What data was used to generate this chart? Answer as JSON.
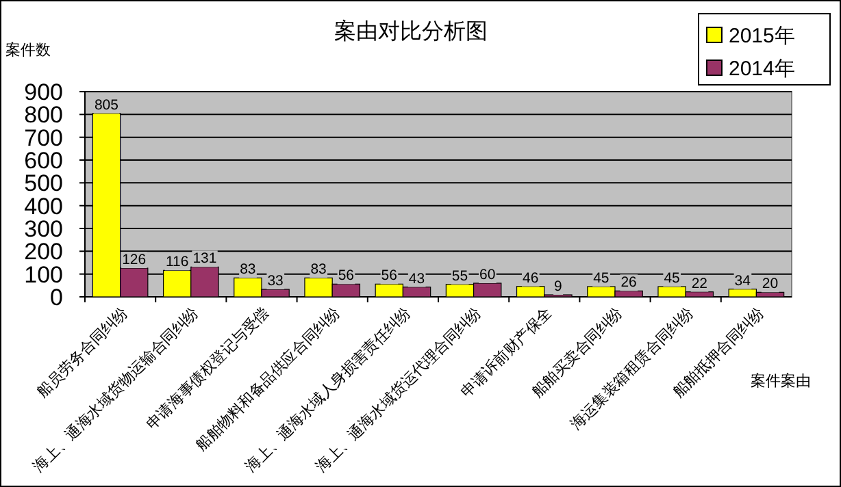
{
  "chart_data": {
    "type": "bar",
    "title": "案由对比分析图",
    "xlabel": "案件案由",
    "ylabel": "案件数",
    "categories": [
      "船员劳务合同纠纷",
      "海上、通海水域货物运输合同纠纷",
      "申请海事债权登记与受偿",
      "船舶物料和备品供应合同纠纷",
      "海上、通海水域人身损害责任纠纷",
      "海上、通海水域货运代理合同纠纷",
      "申请诉前财产保全",
      "船舶买卖合同纠纷",
      "海运集装箱租赁合同纠纷",
      "船舶抵押合同纠纷"
    ],
    "series": [
      {
        "name": "2015年",
        "color": "#ffff00",
        "values": [
          805,
          116,
          83,
          83,
          56,
          55,
          46,
          45,
          45,
          34
        ]
      },
      {
        "name": "2014年",
        "color": "#993366",
        "values": [
          126,
          131,
          33,
          56,
          43,
          60,
          9,
          26,
          22,
          20
        ]
      }
    ],
    "ylim": [
      0,
      900
    ],
    "yticks": [
      0,
      100,
      200,
      300,
      400,
      500,
      600,
      700,
      800,
      900
    ],
    "grid": "y",
    "legend": "top right",
    "data_labels": true
  }
}
